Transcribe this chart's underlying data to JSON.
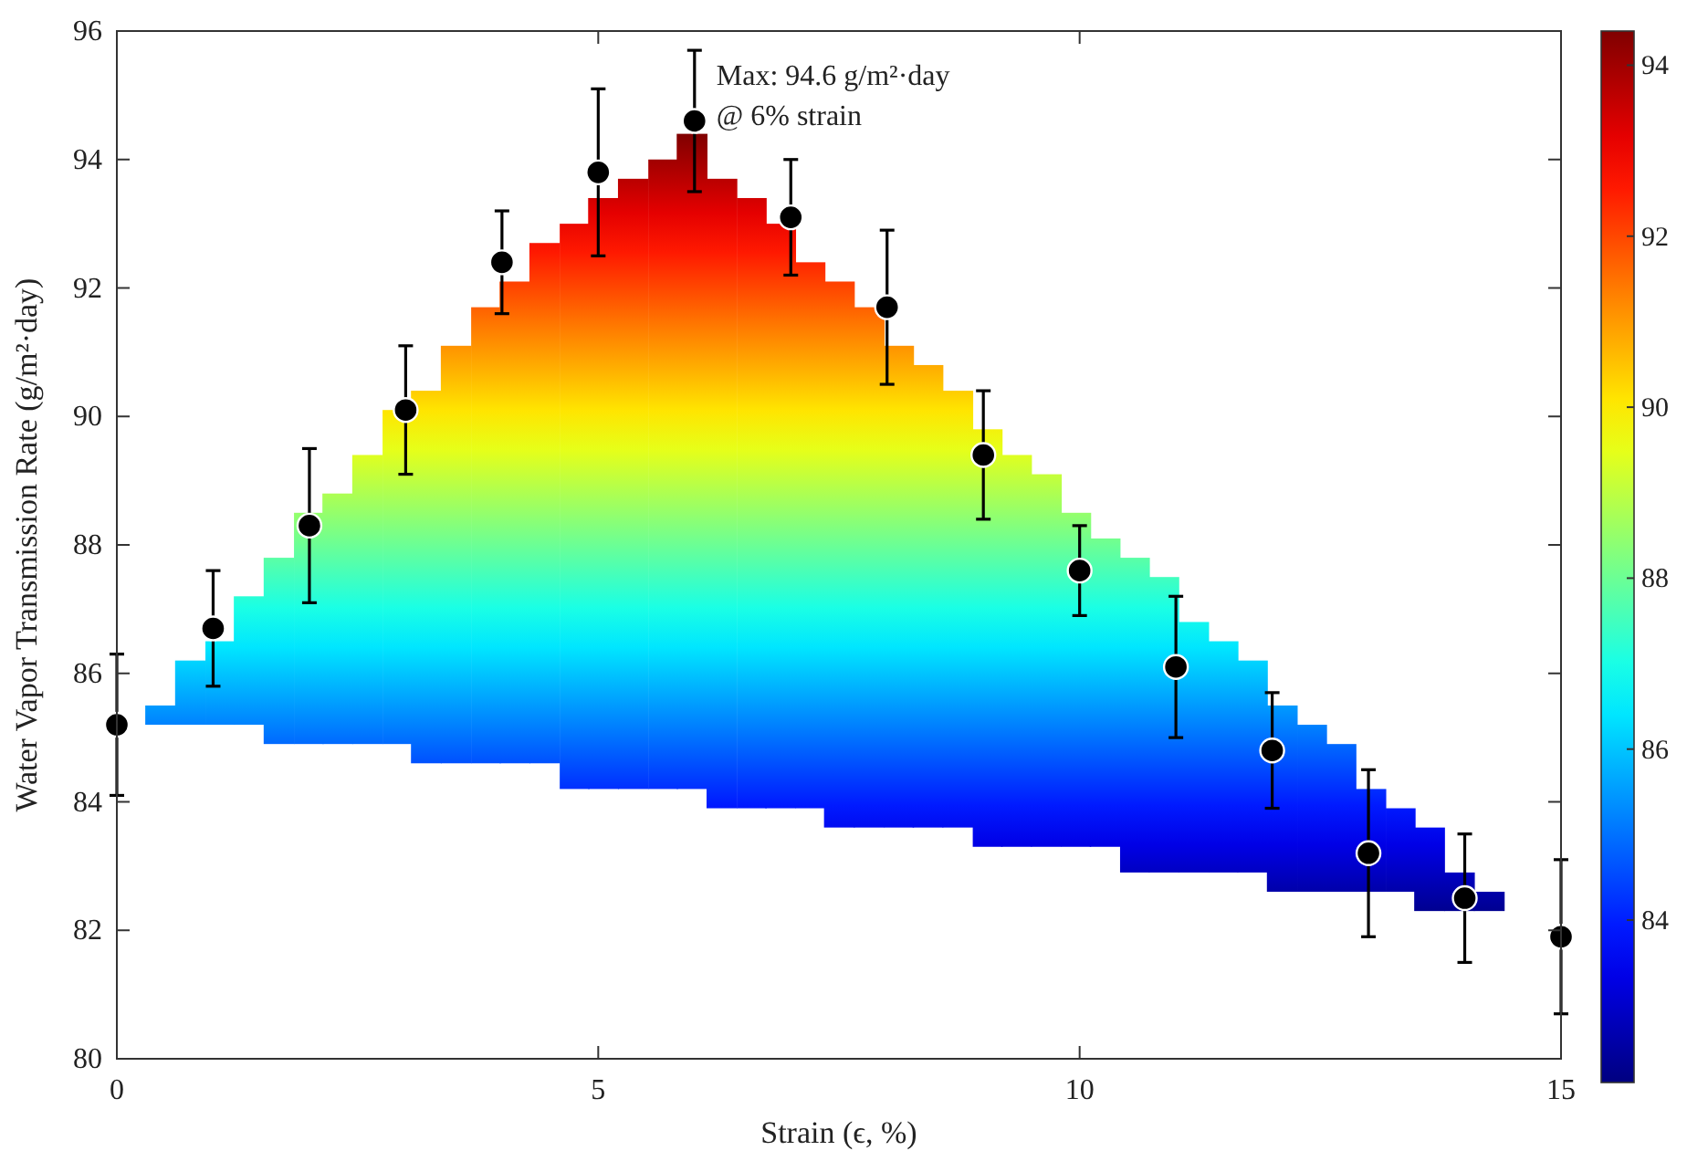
{
  "chart_data": {
    "type": "scatter",
    "xlabel": "Strain (ϵ, %)",
    "ylabel": "Water Vapor Transmission Rate (g/m²·day)",
    "xlim": [
      0,
      15
    ],
    "xticks": [
      0,
      5,
      10,
      15
    ],
    "ylim": [
      80,
      96
    ],
    "yticks": [
      80,
      82,
      84,
      86,
      88,
      90,
      92,
      94,
      96
    ],
    "clim": [
      82.1,
      94.4
    ],
    "cticks": [
      84,
      86,
      88,
      90,
      92,
      94
    ],
    "grid": false,
    "annotations": [
      {
        "text": "Max: 94.6 g/m²·day\n@ 6% strain",
        "x": 6,
        "y": 94.6
      }
    ],
    "series": [
      {
        "type": "bar",
        "x": [
          0.45,
          0.76,
          1.07,
          1.37,
          1.68,
          1.99,
          2.29,
          2.6,
          2.91,
          3.21,
          3.52,
          3.83,
          4.13,
          4.44,
          4.75,
          5.05,
          5.36,
          5.67,
          5.97,
          6.28,
          6.59,
          6.89,
          7.2,
          7.5,
          7.81,
          8.12,
          8.42,
          8.73,
          9.04,
          9.34,
          9.65,
          9.96,
          10.26,
          10.57,
          10.87,
          11.18,
          11.49,
          11.79,
          12.1,
          12.41,
          12.71,
          13.02,
          13.33,
          13.63,
          13.94,
          14.25
        ],
        "base": [
          85.2,
          85.2,
          85.2,
          85.2,
          84.9,
          84.9,
          84.9,
          84.9,
          84.9,
          84.6,
          84.6,
          84.6,
          84.6,
          84.6,
          84.2,
          84.2,
          84.2,
          84.2,
          84.2,
          83.9,
          83.9,
          83.9,
          83.9,
          83.6,
          83.6,
          83.6,
          83.6,
          83.6,
          83.3,
          83.3,
          83.3,
          83.3,
          83.3,
          82.9,
          82.9,
          82.9,
          82.9,
          82.9,
          82.6,
          82.6,
          82.6,
          82.6,
          82.6,
          82.3,
          82.3,
          82.3
        ],
        "values": [
          0.3,
          1.0,
          1.3,
          2.0,
          2.9,
          3.6,
          3.9,
          4.5,
          5.2,
          5.8,
          6.5,
          7.1,
          7.5,
          8.1,
          8.8,
          9.2,
          9.5,
          9.8,
          10.2,
          9.8,
          9.5,
          9.1,
          8.5,
          8.5,
          8.1,
          7.5,
          7.2,
          6.8,
          6.5,
          6.1,
          5.8,
          5.2,
          4.8,
          4.9,
          4.6,
          3.9,
          3.6,
          3.3,
          2.9,
          2.6,
          2.3,
          1.6,
          1.3,
          1.3,
          0.6,
          0.3
        ]
      },
      {
        "color": "#000000",
        "marker": "circle",
        "x": [
          0,
          1,
          2,
          3,
          4,
          5,
          6,
          7,
          8,
          9,
          10,
          11,
          12,
          13,
          14,
          15
        ],
        "values": [
          85.2,
          86.7,
          88.3,
          90.1,
          92.4,
          93.8,
          94.6,
          93.1,
          91.7,
          89.4,
          87.6,
          86.1,
          84.8,
          83.2,
          82.5,
          81.9
        ],
        "errors": [
          [
            84.1,
            86.3
          ],
          [
            85.8,
            87.6
          ],
          [
            87.1,
            89.5
          ],
          [
            89.1,
            91.1
          ],
          [
            91.6,
            93.2
          ],
          [
            92.5,
            95.1
          ],
          [
            93.5,
            95.7
          ],
          [
            92.2,
            94.0
          ],
          [
            90.5,
            92.9
          ],
          [
            88.4,
            90.4
          ],
          [
            86.9,
            88.3
          ],
          [
            85.0,
            87.2
          ],
          [
            83.9,
            85.7
          ],
          [
            81.9,
            84.5
          ],
          [
            81.5,
            83.5
          ],
          [
            80.7,
            83.1
          ]
        ]
      }
    ]
  }
}
